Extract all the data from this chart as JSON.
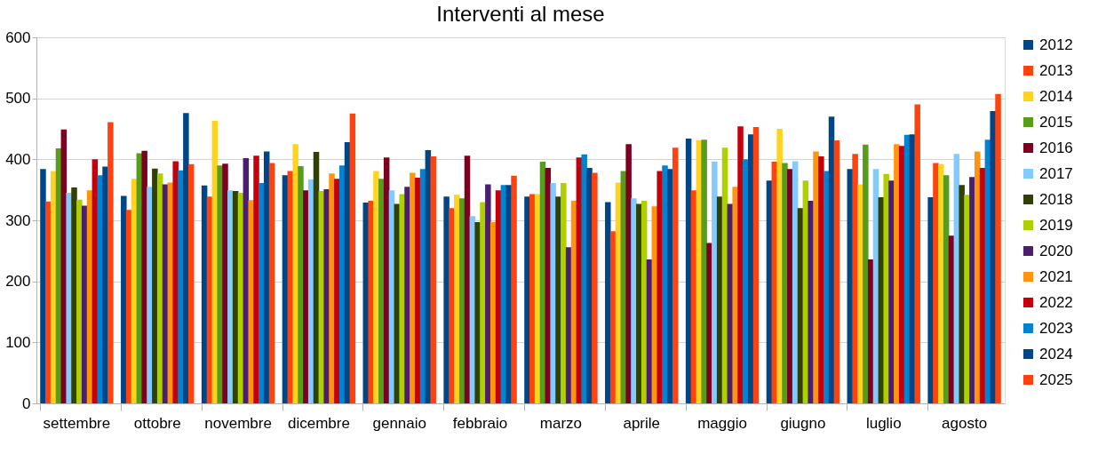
{
  "chart_data": {
    "type": "bar",
    "title": "Interventi al mese",
    "categories": [
      "settembre",
      "ottobre",
      "novembre",
      "dicembre",
      "gennaio",
      "febbraio",
      "marzo",
      "aprile",
      "maggio",
      "giugno",
      "luglio",
      "agosto"
    ],
    "series": [
      {
        "name": "2012",
        "color": "#004586",
        "values": [
          384,
          340,
          357,
          374,
          329,
          339,
          339,
          330,
          434,
          365,
          384,
          338
        ]
      },
      {
        "name": "2013",
        "color": "#ff420e",
        "values": [
          331,
          317,
          339,
          381,
          332,
          320,
          343,
          282,
          349,
          396,
          409,
          394
        ]
      },
      {
        "name": "2014",
        "color": "#ffd320",
        "values": [
          381,
          368,
          463,
          425,
          381,
          342,
          343,
          362,
          431,
          450,
          359,
          392
        ]
      },
      {
        "name": "2015",
        "color": "#579d1c",
        "values": [
          418,
          410,
          390,
          389,
          368,
          336,
          396,
          381,
          432,
          394,
          424,
          374
        ]
      },
      {
        "name": "2016",
        "color": "#7e0021",
        "values": [
          449,
          414,
          393,
          349,
          403,
          406,
          386,
          425,
          263,
          384,
          236,
          275
        ]
      },
      {
        "name": "2017",
        "color": "#83caff",
        "values": [
          345,
          355,
          349,
          367,
          349,
          307,
          361,
          336,
          396,
          397,
          384,
          409
        ]
      },
      {
        "name": "2018",
        "color": "#314004",
        "values": [
          354,
          385,
          348,
          412,
          327,
          297,
          339,
          327,
          339,
          320,
          338,
          358
        ]
      },
      {
        "name": "2019",
        "color": "#aecf00",
        "values": [
          334,
          377,
          345,
          348,
          343,
          330,
          361,
          332,
          419,
          365,
          376,
          342
        ]
      },
      {
        "name": "2020",
        "color": "#4b1f6f",
        "values": [
          324,
          359,
          402,
          351,
          355,
          359,
          256,
          236,
          327,
          332,
          365,
          371
        ]
      },
      {
        "name": "2021",
        "color": "#ff950e",
        "values": [
          349,
          362,
          333,
          377,
          378,
          297,
          332,
          323,
          355,
          413,
          425,
          413
        ]
      },
      {
        "name": "2022",
        "color": "#c5000b",
        "values": [
          400,
          397,
          406,
          368,
          370,
          349,
          403,
          381,
          454,
          405,
          422,
          386
        ]
      },
      {
        "name": "2023",
        "color": "#0084d1",
        "values": [
          374,
          382,
          361,
          390,
          384,
          358,
          408,
          390,
          400,
          381,
          440,
          432
        ]
      },
      {
        "name": "2024",
        "color": "#004586",
        "values": [
          388,
          476,
          413,
          428,
          415,
          358,
          386,
          384,
          441,
          470,
          441,
          479
        ]
      },
      {
        "name": "2025",
        "color": "#ff420e",
        "values": [
          461,
          392,
          394,
          475,
          405,
          373,
          378,
          419,
          453,
          431,
          490,
          507
        ]
      }
    ],
    "ylim": [
      0,
      600
    ],
    "yticks": [
      0,
      100,
      200,
      300,
      400,
      500,
      600
    ],
    "grid": "y",
    "legend": "right"
  }
}
